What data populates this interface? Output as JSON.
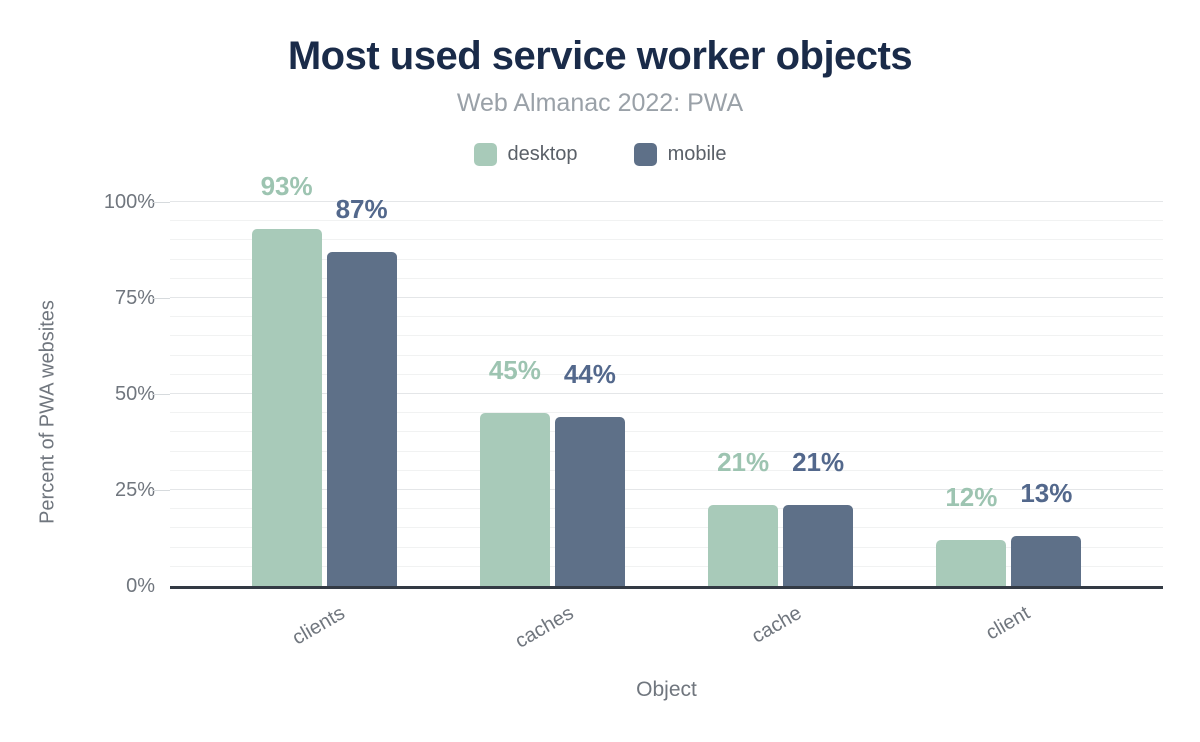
{
  "header": {
    "title": "Most used service worker objects",
    "subtitle": "Web Almanac 2022: PWA"
  },
  "chart_data": {
    "type": "bar",
    "title": "Most used service worker objects",
    "subtitle": "Web Almanac 2022: PWA",
    "categories": [
      "clients",
      "caches",
      "cache",
      "client"
    ],
    "series": [
      {
        "name": "desktop",
        "values": [
          93,
          45,
          21,
          12
        ],
        "color": "#a8cab9",
        "label_color": "#9dc4b1"
      },
      {
        "name": "mobile",
        "values": [
          87,
          44,
          21,
          13
        ],
        "color": "#5e7088",
        "label_color": "#53688c"
      }
    ],
    "xlabel": "Object",
    "ylabel": "Percent of PWA websites",
    "ylim": [
      0,
      100
    ],
    "yticks": [
      0,
      25,
      50,
      75,
      100
    ],
    "ytick_labels": [
      "0%",
      "25%",
      "50%",
      "75%",
      "100%"
    ],
    "value_suffix": "%",
    "grid": {
      "on": true,
      "minor_step": 5,
      "major_step": 25
    },
    "legend_position": "top",
    "colors": {
      "title": "#1a2b49",
      "subtitle": "#9aa1a8",
      "axis_text": "#70767e",
      "axis_line": "#333a44",
      "grid_minor": "#f1f2f2",
      "grid_major": "#e4e6e8",
      "background": "#ffffff"
    }
  }
}
